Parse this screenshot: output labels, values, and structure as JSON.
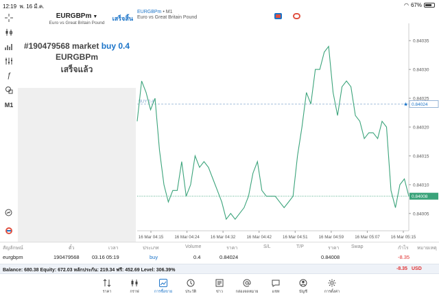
{
  "status_bar": {
    "time": "12:19",
    "date": "พ. 16 มี.ค.",
    "battery": "67%",
    "battery_level": 0.67
  },
  "trade_panel": {
    "symbol": "EURGBPm",
    "symbol_desc": "Euro vs Great Britain Pound",
    "done_label": "เสร็จสิ้น",
    "order_prefix": "#190479568 market",
    "order_action": "buy 0.4",
    "result_symbol": "EURGBPm",
    "result_status": "เสร็จแล้ว"
  },
  "toolbar": {
    "timeframe_label": "M1"
  },
  "chart_header": {
    "symbol": "EURGBPm",
    "timeframe": " • M1",
    "desc": "Euro vs Great Britain Pound"
  },
  "chart_data": {
    "type": "line",
    "color": "#3aa37a",
    "x_ticks": [
      "16 Mar 04:15",
      "16 Mar 04:24",
      "16 Mar 04:32",
      "16 Mar 04:42",
      "16 Mar 04:51",
      "16 Mar 04:59",
      "16 Mar 05:07",
      "16 Mar 05:15"
    ],
    "y_ticks": [
      0.84005,
      0.8401,
      0.84015,
      0.8402,
      0.84025,
      0.8403,
      0.84035
    ],
    "ylim": [
      0.84002,
      0.84038
    ],
    "buy_line": {
      "label": "BUY 0.4",
      "price": 0.84024,
      "price_label": "0.84024"
    },
    "current_price": {
      "price": 0.84008,
      "label": "0.84008"
    },
    "y": [
      0.84021,
      0.84028,
      0.84026,
      0.84023,
      0.84025,
      0.84016,
      0.8401,
      0.84007,
      0.84009,
      0.84009,
      0.84014,
      0.84008,
      0.8401,
      0.84015,
      0.84013,
      0.84014,
      0.84013,
      0.84011,
      0.84009,
      0.84007,
      0.84004,
      0.84005,
      0.84004,
      0.84005,
      0.84006,
      0.84008,
      0.84012,
      0.84014,
      0.84009,
      0.84008,
      0.84008,
      0.84008,
      0.84007,
      0.84006,
      0.84007,
      0.84008,
      0.84015,
      0.8402,
      0.84026,
      0.84024,
      0.8403,
      0.8403,
      0.84033,
      0.84034,
      0.84026,
      0.84022,
      0.84027,
      0.84028,
      0.84027,
      0.84022,
      0.84021,
      0.84018,
      0.84019,
      0.84019,
      0.84018,
      0.84021,
      0.8402,
      0.84009,
      0.84006,
      0.8401,
      0.84011,
      0.84008
    ]
  },
  "table": {
    "headers": [
      "สัญลักษณ์",
      "ตั๋ว",
      "เวลา",
      "ประเภท",
      "Volume",
      "ราคา",
      "S/L",
      "T/P",
      "ราคา",
      "Swap",
      "กำไร",
      "หมายเหตุ"
    ],
    "row": {
      "symbol": "eurgbpm",
      "ticket": "190479568",
      "time": "03.16 05:19",
      "type": "buy",
      "volume": "0.4",
      "open_price": "0.84024",
      "sl": "",
      "tp": "",
      "price": "0.84008",
      "swap": "",
      "profit": "-8.35",
      "comment": ""
    }
  },
  "balance": {
    "text": "Balance: 680.38 Equity: 672.03 หลักประกัน: 219.34 ฟรี: 452.69 Level: 306.39%",
    "profit": "-8.35",
    "currency": "USD"
  },
  "nav": [
    {
      "label": "ราคา",
      "icon": "arrows-up-down-icon"
    },
    {
      "label": "กราฟ",
      "icon": "candles-icon"
    },
    {
      "label": "การซื้อขาย",
      "icon": "trade-chart-icon",
      "active": true
    },
    {
      "label": "ประวัติ",
      "icon": "history-icon"
    },
    {
      "label": "ข่าว",
      "icon": "news-icon"
    },
    {
      "label": "กล่องจดหมาย",
      "icon": "mailbox-icon"
    },
    {
      "label": "แชท",
      "icon": "chat-icon"
    },
    {
      "label": "บัญชี",
      "icon": "account-icon"
    },
    {
      "label": "การตั้งค่า",
      "icon": "settings-icon"
    }
  ],
  "colors": {
    "accent": "#1a73c8",
    "loss": "#e03030",
    "line": "#3aa37a"
  }
}
